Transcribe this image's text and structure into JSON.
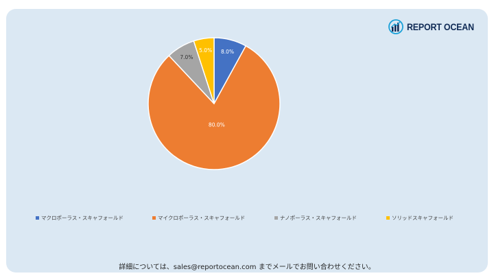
{
  "brand": {
    "name": "REPORT OCEAN",
    "icon": "bar-chart-globe-icon"
  },
  "colors": {
    "background": "#dbe8f3",
    "series": [
      "#4472c4",
      "#ed7d31",
      "#a5a5a5",
      "#ffc000"
    ]
  },
  "chart_data": {
    "type": "pie",
    "title": "",
    "labels": [
      "マクロポーラス・スキャフォールド",
      "マイクロポーラス・スキャフォールド",
      "ナノポーラス・スキャフォールド",
      "ソリッドスキャフォールド"
    ],
    "values": [
      8.0,
      80.0,
      7.0,
      5.0
    ],
    "data_labels": [
      "8.0%",
      "80.0%",
      "7.0%",
      "5.0%"
    ],
    "slice_order": [
      0,
      1,
      2,
      3
    ],
    "start_angle_deg": 0,
    "direction": "clockwise",
    "legend_position": "bottom"
  },
  "footer": {
    "text": "詳細については、sales@reportocean.com までメールでお問い合わせください。"
  }
}
